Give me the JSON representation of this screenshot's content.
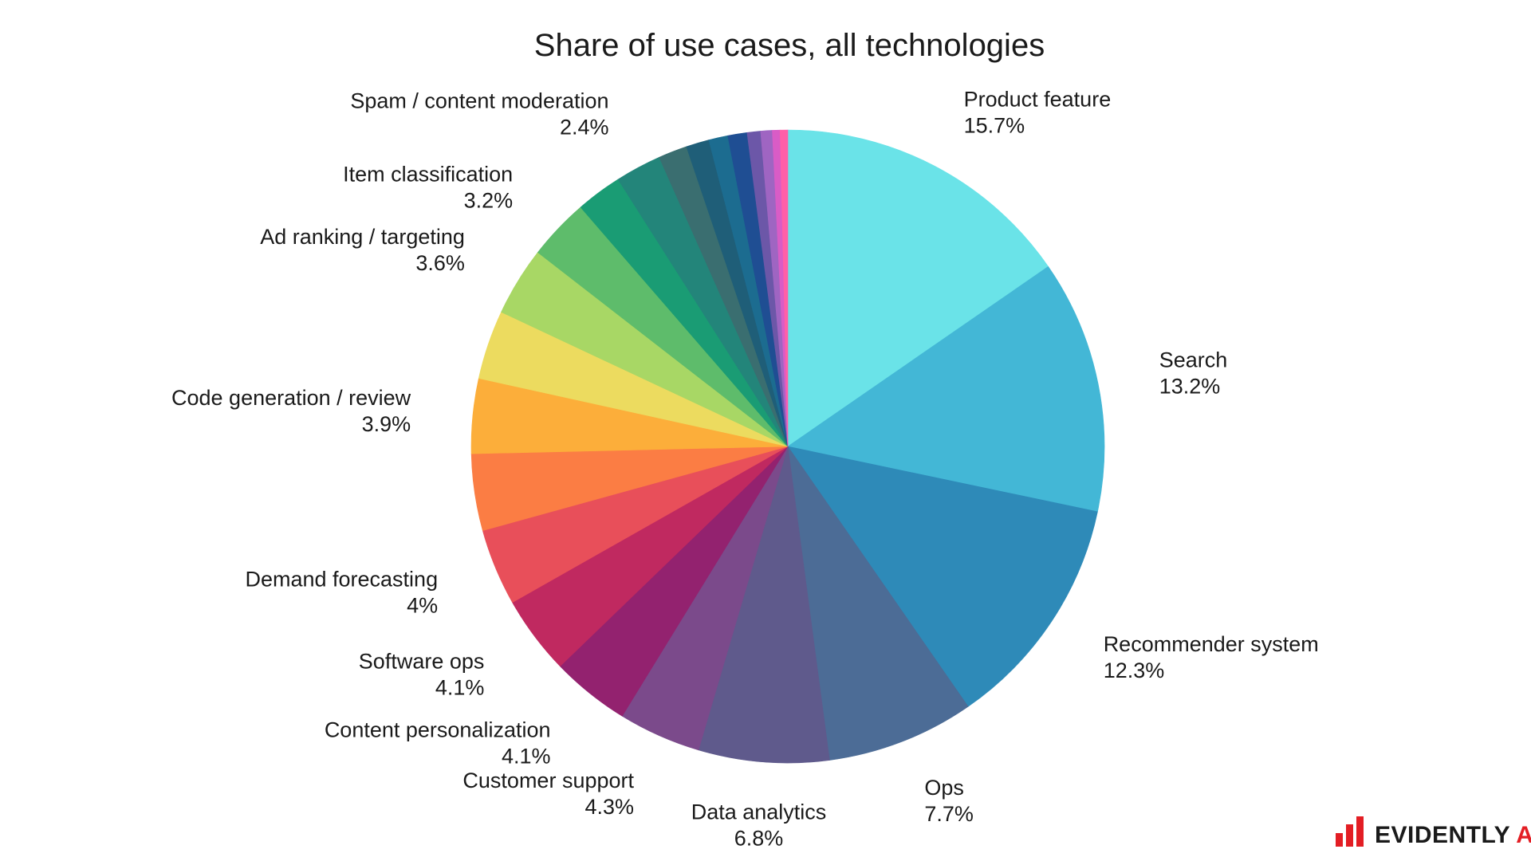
{
  "chart_data": {
    "type": "pie",
    "title": "Share of use cases, all technologies",
    "start_angle_deg": 0,
    "direction": "clockwise",
    "slices": [
      {
        "label": "Product feature",
        "value": 15.7,
        "value_label": "15.7%",
        "color": "#6ae3e8",
        "show_label": true
      },
      {
        "label": "Search",
        "value": 13.2,
        "value_label": "13.2%",
        "color": "#43b7d6",
        "show_label": true
      },
      {
        "label": "Recommender system",
        "value": 12.3,
        "value_label": "12.3%",
        "color": "#2e8ab8",
        "show_label": true
      },
      {
        "label": "Ops",
        "value": 7.7,
        "value_label": "7.7%",
        "color": "#4c6c96",
        "show_label": true
      },
      {
        "label": "Data analytics",
        "value": 6.8,
        "value_label": "6.8%",
        "color": "#5f5a8c",
        "show_label": true
      },
      {
        "label": "Customer support",
        "value": 4.3,
        "value_label": "4.3%",
        "color": "#7b4a8b",
        "show_label": true
      },
      {
        "label": "Content personalization",
        "value": 4.1,
        "value_label": "4.1%",
        "color": "#93226f",
        "show_label": true
      },
      {
        "label": "Software ops",
        "value": 4.1,
        "value_label": "4.1%",
        "color": "#c02960",
        "show_label": true
      },
      {
        "label": "Demand forecasting",
        "value": 4.0,
        "value_label": "4%",
        "color": "#e84f5a",
        "show_label": true
      },
      {
        "label": "",
        "value": 4.0,
        "value_label": "",
        "color": "#fb7d44",
        "show_label": false
      },
      {
        "label": "Code generation / review",
        "value": 3.9,
        "value_label": "3.9%",
        "color": "#fcae3a",
        "show_label": true
      },
      {
        "label": "",
        "value": 3.6,
        "value_label": "",
        "color": "#ecdb5f",
        "show_label": false
      },
      {
        "label": "Ad ranking / targeting",
        "value": 3.6,
        "value_label": "3.6%",
        "color": "#a8d765",
        "show_label": true
      },
      {
        "label": "Item classification",
        "value": 3.2,
        "value_label": "3.2%",
        "color": "#5ebc6b",
        "show_label": true
      },
      {
        "label": "",
        "value": 2.4,
        "value_label": "",
        "color": "#1a9c74",
        "show_label": false
      },
      {
        "label": "Spam / content moderation",
        "value": 2.4,
        "value_label": "2.4%",
        "color": "#23857a",
        "show_label": true
      },
      {
        "label": "",
        "value": 1.5,
        "value_label": "",
        "color": "#3a6e70",
        "show_label": false
      },
      {
        "label": "",
        "value": 1.2,
        "value_label": "",
        "color": "#1f5e78",
        "show_label": false
      },
      {
        "label": "",
        "value": 1.0,
        "value_label": "",
        "color": "#1c6c90",
        "show_label": false
      },
      {
        "label": "",
        "value": 1.0,
        "value_label": "",
        "color": "#1f4e93",
        "show_label": false
      },
      {
        "label": "",
        "value": 0.7,
        "value_label": "",
        "color": "#6c57a8",
        "show_label": false
      },
      {
        "label": "",
        "value": 0.6,
        "value_label": "",
        "color": "#9f65c2",
        "show_label": false
      },
      {
        "label": "",
        "value": 0.4,
        "value_label": "",
        "color": "#d95cc6",
        "show_label": false
      },
      {
        "label": "",
        "value": 0.4,
        "value_label": "",
        "color": "#ff5fa8",
        "show_label": false
      }
    ]
  },
  "logo": {
    "text_main": "EVIDENTLY ",
    "text_accent": "AI",
    "colors": {
      "main": "#1a1a1a",
      "accent": "#e31e24"
    }
  }
}
